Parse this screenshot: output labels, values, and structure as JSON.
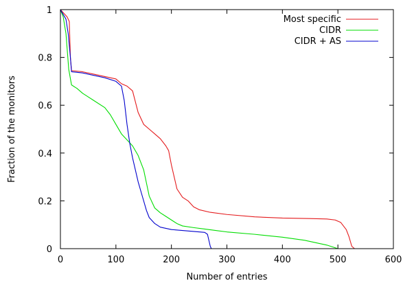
{
  "chart_data": {
    "type": "line",
    "title": "",
    "xlabel": "Number of entries",
    "ylabel": "Fraction of the monitors",
    "xlim": [
      0,
      600
    ],
    "ylim": [
      0,
      1
    ],
    "xticks": [
      0,
      100,
      200,
      300,
      400,
      500,
      600
    ],
    "yticks": [
      0,
      0.2,
      0.4,
      0.6,
      0.8,
      1
    ],
    "xtick_labels": [
      "0",
      "100",
      "200",
      "300",
      "400",
      "500",
      "600"
    ],
    "ytick_labels": [
      "0",
      "0.2",
      "0.4",
      "0.6",
      "0.8",
      "1"
    ],
    "grid": false,
    "legend_position": "top-right",
    "series": [
      {
        "name": "Most specific",
        "color": "#e41a1c",
        "points": [
          [
            0,
            1
          ],
          [
            4,
            0.99
          ],
          [
            8,
            0.98
          ],
          [
            12,
            0.97
          ],
          [
            16,
            0.95
          ],
          [
            18,
            0.8
          ],
          [
            20,
            0.745
          ],
          [
            40,
            0.74
          ],
          [
            60,
            0.73
          ],
          [
            80,
            0.72
          ],
          [
            100,
            0.71
          ],
          [
            110,
            0.69
          ],
          [
            120,
            0.68
          ],
          [
            130,
            0.66
          ],
          [
            140,
            0.57
          ],
          [
            150,
            0.52
          ],
          [
            160,
            0.5
          ],
          [
            170,
            0.48
          ],
          [
            180,
            0.46
          ],
          [
            190,
            0.43
          ],
          [
            195,
            0.41
          ],
          [
            200,
            0.35
          ],
          [
            205,
            0.3
          ],
          [
            210,
            0.25
          ],
          [
            220,
            0.215
          ],
          [
            230,
            0.2
          ],
          [
            240,
            0.175
          ],
          [
            250,
            0.163
          ],
          [
            270,
            0.152
          ],
          [
            300,
            0.143
          ],
          [
            350,
            0.133
          ],
          [
            400,
            0.128
          ],
          [
            450,
            0.126
          ],
          [
            480,
            0.124
          ],
          [
            495,
            0.12
          ],
          [
            505,
            0.11
          ],
          [
            515,
            0.08
          ],
          [
            520,
            0.05
          ],
          [
            525,
            0.01
          ],
          [
            530,
            0
          ]
        ]
      },
      {
        "name": "CIDR",
        "color": "#00dd00",
        "points": [
          [
            0,
            1
          ],
          [
            5,
            0.97
          ],
          [
            10,
            0.9
          ],
          [
            15,
            0.75
          ],
          [
            20,
            0.685
          ],
          [
            30,
            0.67
          ],
          [
            40,
            0.65
          ],
          [
            60,
            0.62
          ],
          [
            80,
            0.59
          ],
          [
            90,
            0.56
          ],
          [
            100,
            0.52
          ],
          [
            110,
            0.48
          ],
          [
            120,
            0.455
          ],
          [
            130,
            0.43
          ],
          [
            140,
            0.39
          ],
          [
            150,
            0.33
          ],
          [
            160,
            0.22
          ],
          [
            170,
            0.17
          ],
          [
            180,
            0.15
          ],
          [
            190,
            0.135
          ],
          [
            200,
            0.12
          ],
          [
            210,
            0.105
          ],
          [
            220,
            0.095
          ],
          [
            240,
            0.088
          ],
          [
            260,
            0.082
          ],
          [
            280,
            0.076
          ],
          [
            300,
            0.07
          ],
          [
            350,
            0.06
          ],
          [
            400,
            0.048
          ],
          [
            440,
            0.035
          ],
          [
            460,
            0.025
          ],
          [
            480,
            0.015
          ],
          [
            500,
            0
          ]
        ]
      },
      {
        "name": "CIDR + AS",
        "color": "#0000cc",
        "points": [
          [
            0,
            1
          ],
          [
            5,
            0.98
          ],
          [
            10,
            0.96
          ],
          [
            14,
            0.9
          ],
          [
            18,
            0.8
          ],
          [
            20,
            0.74
          ],
          [
            40,
            0.735
          ],
          [
            60,
            0.725
          ],
          [
            80,
            0.715
          ],
          [
            100,
            0.7
          ],
          [
            110,
            0.68
          ],
          [
            115,
            0.62
          ],
          [
            120,
            0.52
          ],
          [
            125,
            0.44
          ],
          [
            130,
            0.38
          ],
          [
            135,
            0.33
          ],
          [
            140,
            0.28
          ],
          [
            145,
            0.24
          ],
          [
            150,
            0.2
          ],
          [
            155,
            0.16
          ],
          [
            160,
            0.13
          ],
          [
            170,
            0.105
          ],
          [
            180,
            0.09
          ],
          [
            200,
            0.08
          ],
          [
            220,
            0.076
          ],
          [
            240,
            0.072
          ],
          [
            260,
            0.068
          ],
          [
            265,
            0.06
          ],
          [
            268,
            0.03
          ],
          [
            270,
            0.01
          ],
          [
            272,
            0
          ]
        ]
      }
    ]
  }
}
